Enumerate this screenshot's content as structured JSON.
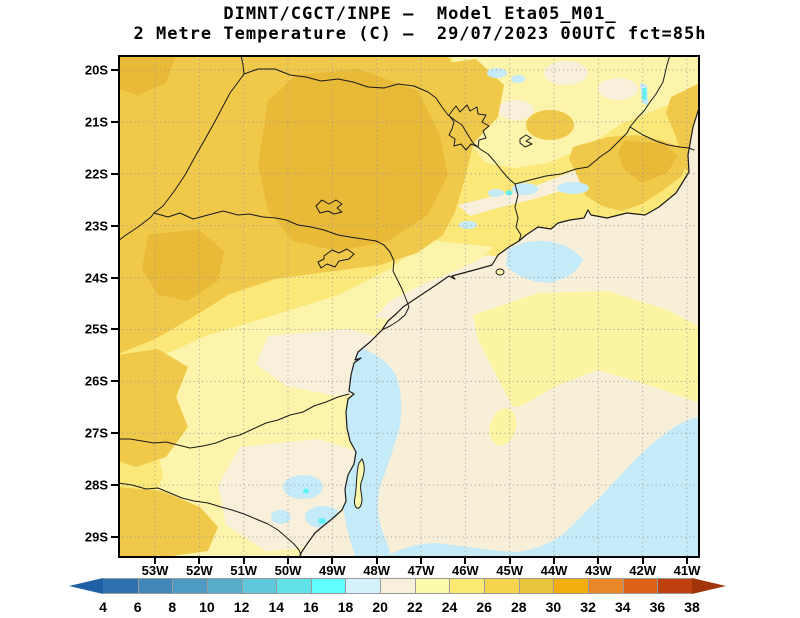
{
  "header": {
    "title_line1": "DIMNT/CGCT/INPE –  Model Eta05_M01_",
    "title_line2": "2 Metre Temperature (C) –  29/07/2023 00UTC fct=85h"
  },
  "map": {
    "y_axis_labels": [
      "20S",
      "21S",
      "22S",
      "23S",
      "24S",
      "25S",
      "26S",
      "27S",
      "28S",
      "29S"
    ],
    "x_axis_labels": [
      "53W",
      "52W",
      "51W",
      "50W",
      "49W",
      "48W",
      "47W",
      "46W",
      "45W",
      "44W",
      "43W",
      "42W",
      "41W"
    ]
  },
  "colorbar": {
    "unit": "C",
    "min": 4,
    "max": 38,
    "step": 2,
    "tick_labels": [
      "4",
      "6",
      "8",
      "10",
      "12",
      "14",
      "16",
      "18",
      "20",
      "22",
      "24",
      "26",
      "28",
      "30",
      "32",
      "34",
      "36",
      "38"
    ],
    "cell_colors": [
      "#2f70ae",
      "#4187ba",
      "#4d9ac2",
      "#58accc",
      "#5fc8dc",
      "#62e2e8",
      "#62ffff",
      "#d4f2fb",
      "#f8f0da",
      "#fbfaa8",
      "#fbe972",
      "#f6d54e",
      "#eac33c",
      "#f3ad0d",
      "#e9882b",
      "#da6115",
      "#bd400e"
    ],
    "left_arrow_color": "#1e5fa6",
    "right_arrow_color": "#a23409"
  },
  "palette": {
    "ocean_base_20_22": "#f8efd9",
    "land_base_24_26": "#fbe878",
    "pale_yellow_22_24": "#fcf4aa",
    "cream_20_22": "#f8f0da",
    "gold_26_28": "#f0c94b",
    "dark_gold_28_30": "#e8ba37",
    "light_blue_18_20": "#c5eaf8",
    "cyan_16_18": "#5ef2f2"
  }
}
